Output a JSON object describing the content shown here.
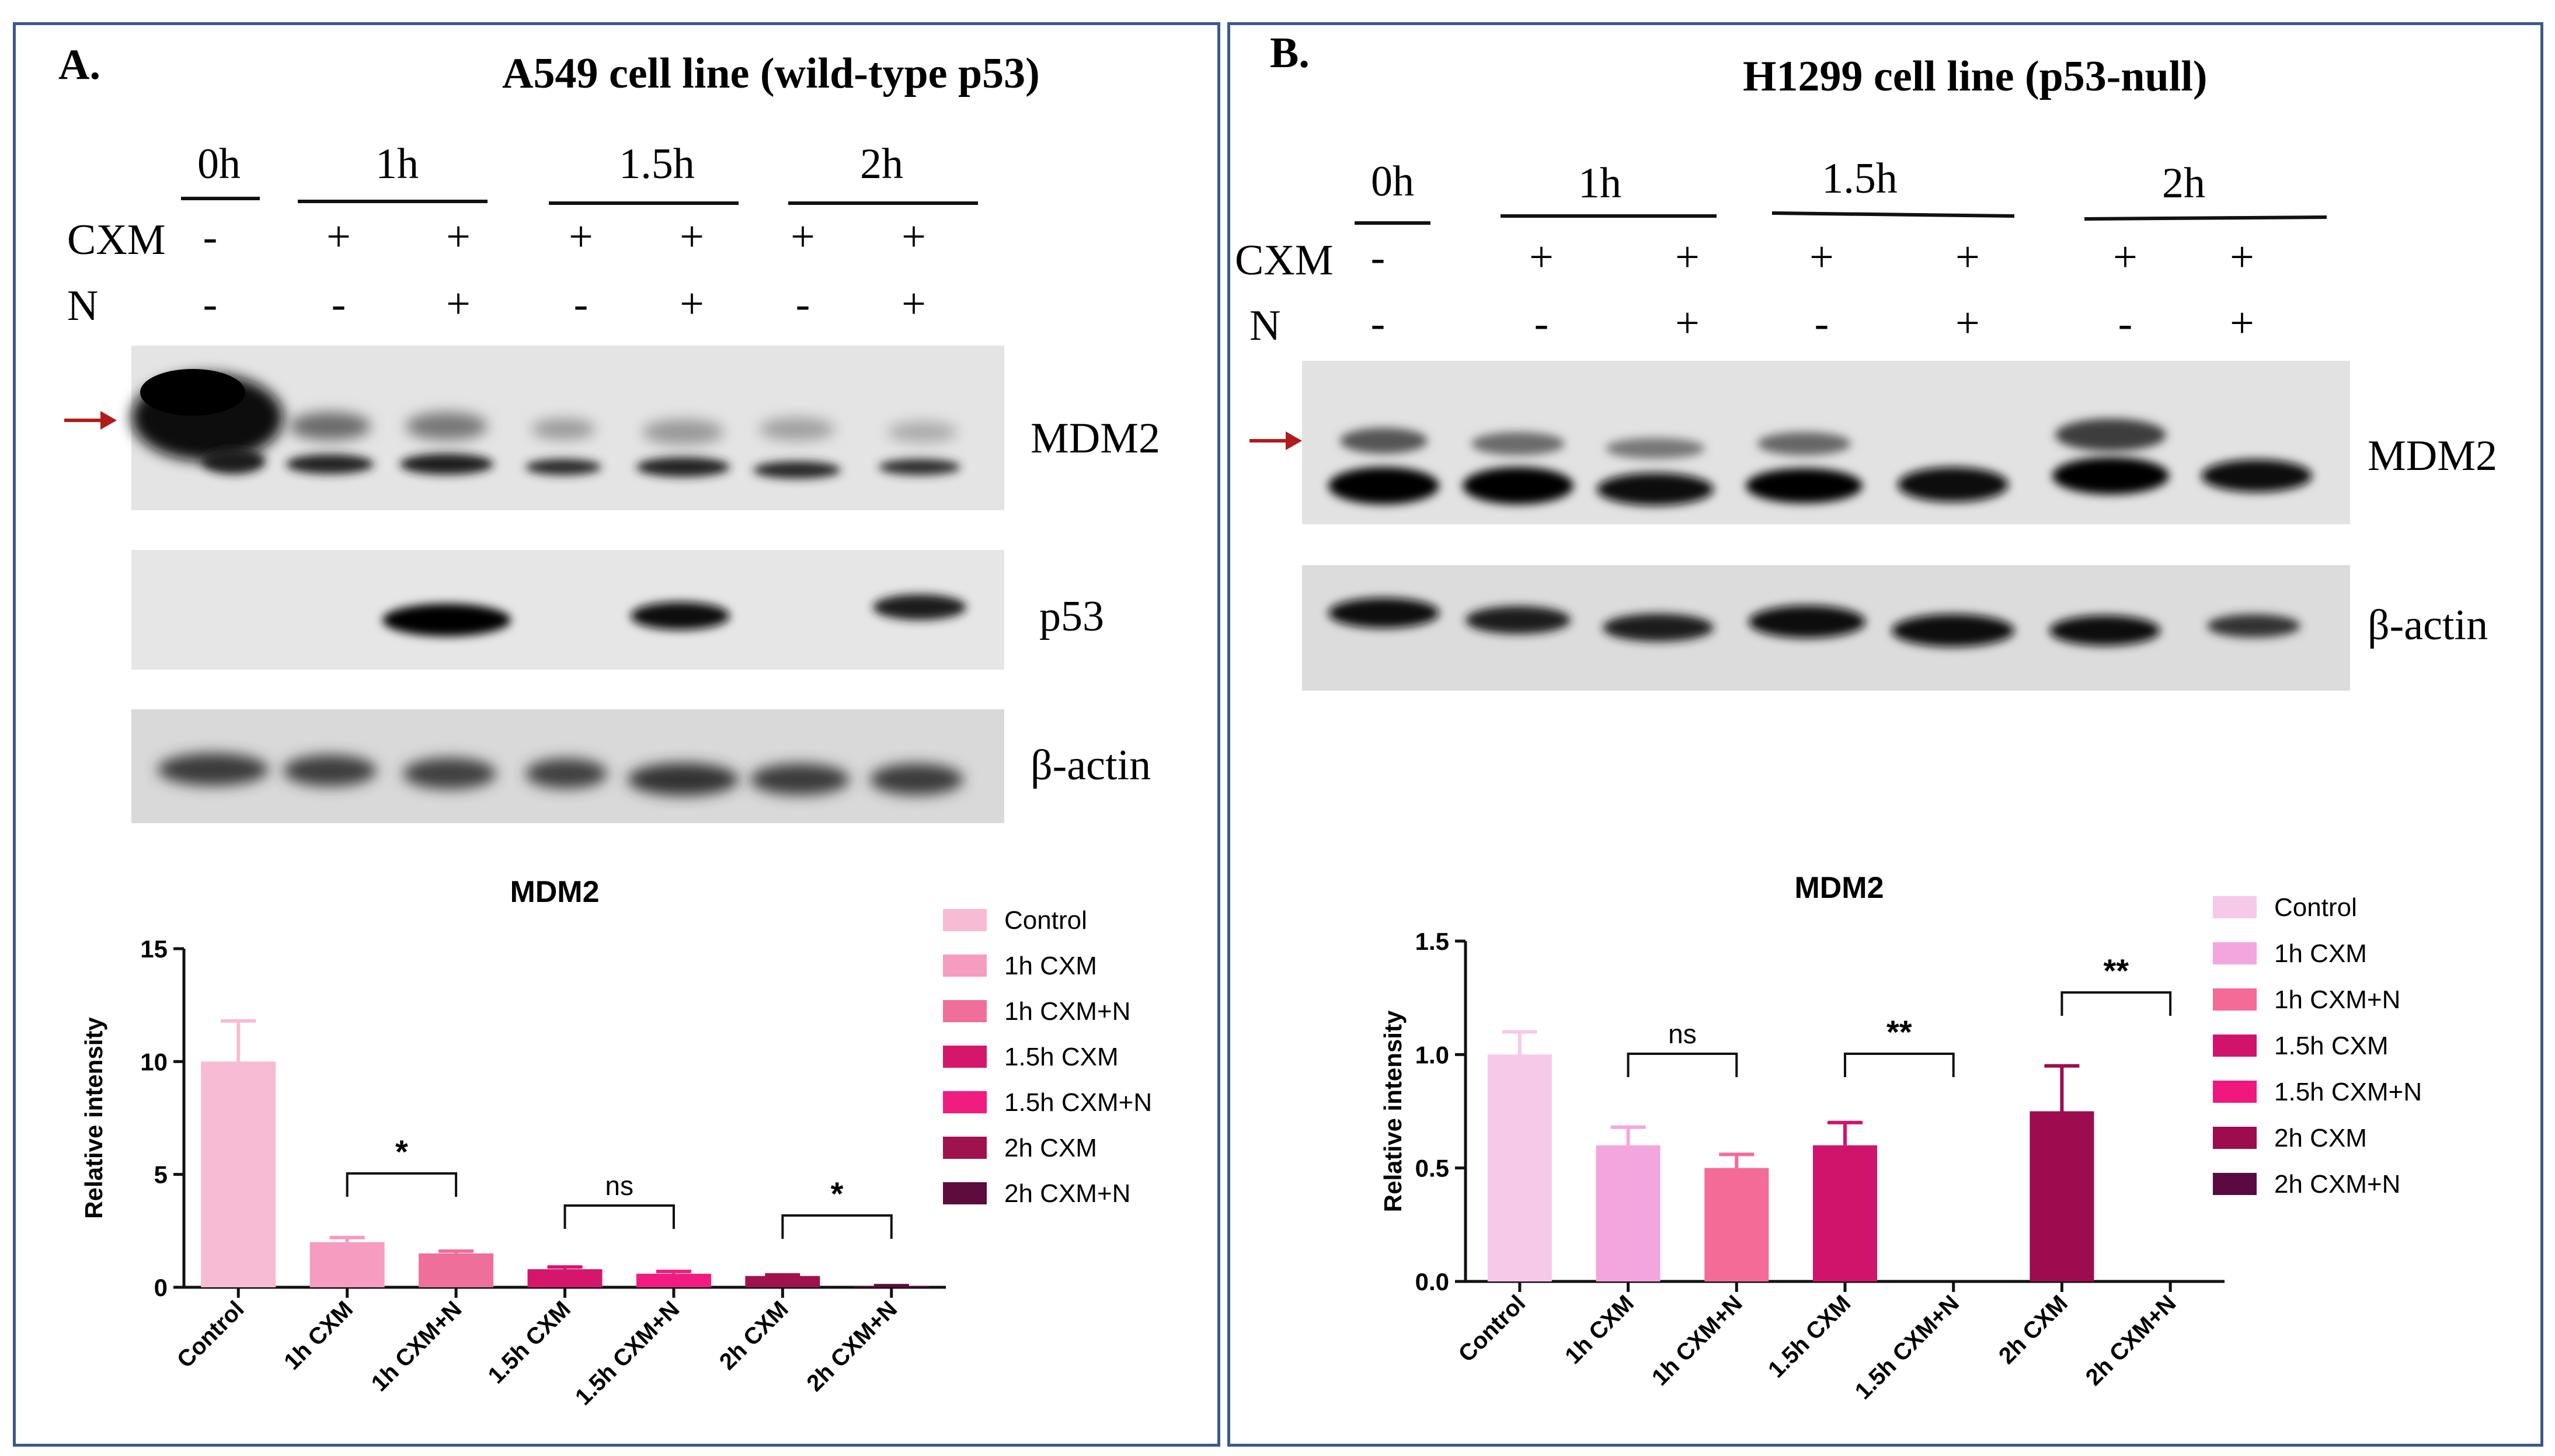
{
  "colors": {
    "frame": "#3b5a8a",
    "arrow": "#b01c1c",
    "axis": "#111111",
    "Control_A": "#f8bbd4",
    "1h CXM_A": "#f59cc0",
    "1h CXM+N_A": "#ef6f9b",
    "1.5h CXM_A": "#d4176b",
    "1.5h CXM+N_A": "#f01c80",
    "2h CXM_A": "#a0124d",
    "2h CXM+N_A": "#5e0b3e",
    "Control_B": "#f7c9e8",
    "1h CXM_B": "#f3a6de",
    "1h CXM+N_B": "#f56b97",
    "1.5h CXM_B": "#d0146c",
    "1.5h CXM+N_B": "#f0187f",
    "2h CXM_B": "#9c0c4e",
    "2h CXM+N_B": "#5a0a40"
  },
  "panelA": {
    "letter": "A.",
    "title": "A549 cell line (wild-type p53)",
    "timepoints": [
      "0h",
      "1h",
      "1.5h",
      "2h"
    ],
    "row_cxm_label": "CXM",
    "row_n_label": "N",
    "cxm_signs": [
      "-",
      "+",
      "+",
      "+",
      "+",
      "+",
      "+"
    ],
    "n_signs": [
      "-",
      "-",
      "+",
      "-",
      "+",
      "-",
      "+"
    ],
    "blot_labels": [
      "MDM2",
      "p53",
      "β-actin"
    ]
  },
  "panelB": {
    "letter": "B.",
    "title": "H1299 cell line (p53-null)",
    "timepoints": [
      "0h",
      "1h",
      "1.5h",
      "2h"
    ],
    "row_cxm_label": "CXM",
    "row_n_label": "N",
    "cxm_signs": [
      "-",
      "+",
      "+",
      "+",
      "+",
      "+",
      "+"
    ],
    "n_signs": [
      "-",
      "-",
      "+",
      "-",
      "+",
      "-",
      "+"
    ],
    "blot_labels": [
      "MDM2",
      "β-actin"
    ]
  },
  "chart_data": [
    {
      "type": "bar",
      "title": "MDM2",
      "ylabel": "Relative intensity",
      "xlabel": "",
      "ylim": [
        0,
        15
      ],
      "yticks": [
        "0",
        "5",
        "10",
        "15"
      ],
      "categories": [
        "Control",
        "1h CXM",
        "1h CXM+N",
        "1.5h CXM",
        "1.5h CXM+N",
        "2h CXM",
        "2h CXM+N"
      ],
      "values": [
        10.0,
        2.0,
        1.5,
        0.8,
        0.6,
        0.5,
        0.05
      ],
      "errors": [
        1.8,
        0.2,
        0.1,
        0.1,
        0.1,
        0.05,
        0.02
      ],
      "legend": [
        "Control",
        "1h CXM",
        "1h CXM+N",
        "1.5h CXM",
        "1.5h CXM+N",
        "2h CXM",
        "2h CXM+N"
      ],
      "legend_position": "right",
      "significance": [
        {
          "from": "1h CXM",
          "to": "1h CXM+N",
          "label": "*"
        },
        {
          "from": "1.5h CXM",
          "to": "1.5h CXM+N",
          "label": "ns"
        },
        {
          "from": "2h CXM",
          "to": "2h CXM+N",
          "label": "*"
        }
      ]
    },
    {
      "type": "bar",
      "title": "MDM2",
      "ylabel": "Relative intensity",
      "xlabel": "",
      "ylim": [
        0,
        1.5
      ],
      "yticks": [
        "0.0",
        "0.5",
        "1.0",
        "1.5"
      ],
      "categories": [
        "Control",
        "1h CXM",
        "1h CXM+N",
        "1.5h CXM",
        "1.5h CXM+N",
        "2h CXM",
        "2h CXM+N"
      ],
      "values": [
        1.0,
        0.6,
        0.5,
        0.6,
        0.0,
        0.75,
        0.0
      ],
      "errors": [
        0.1,
        0.08,
        0.06,
        0.1,
        0,
        0.2,
        0
      ],
      "legend": [
        "Control",
        "1h CXM",
        "1h CXM+N",
        "1.5h CXM",
        "1.5h CXM+N",
        "2h CXM",
        "2h CXM+N"
      ],
      "legend_position": "right",
      "significance": [
        {
          "from": "1h CXM",
          "to": "1h CXM+N",
          "label": "ns"
        },
        {
          "from": "1.5h CXM",
          "to": "1.5h CXM+N",
          "label": "**"
        },
        {
          "from": "2h CXM",
          "to": "2h CXM+N",
          "label": "**"
        }
      ]
    }
  ]
}
